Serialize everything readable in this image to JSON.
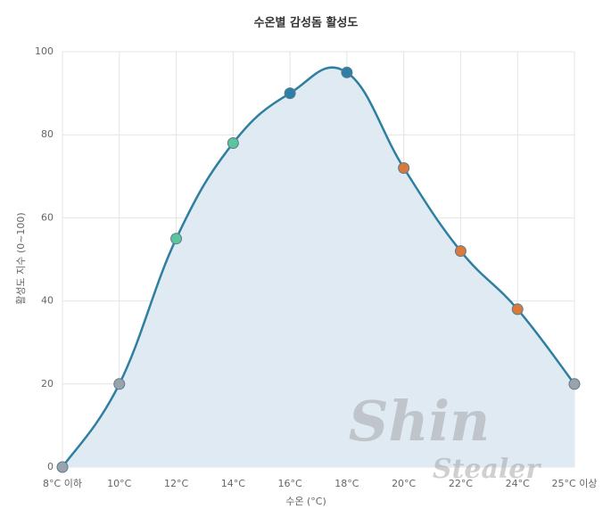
{
  "chart_data": {
    "type": "line",
    "title": "수온별 감성돔 활성도",
    "x_label": "수온 (°C)",
    "y_label": "활성도 지수 (0~100)",
    "categories": [
      "8°C 이하",
      "10°C",
      "12°C",
      "14°C",
      "16°C",
      "18°C",
      "20°C",
      "22°C",
      "24°C",
      "25°C 이상"
    ],
    "series": [
      {
        "color": "#2e7fa0",
        "fill": "#dfeaf3",
        "point_colors": [
          "#9aa3ab",
          "#9aa3ab",
          "#5cc59e",
          "#5cc59e",
          "#2e7fa8",
          "#2e7fa8",
          "#d97a3c",
          "#d97a3c",
          "#d97a3c",
          "#9aa3ab"
        ],
        "values": [
          0,
          20,
          55,
          78,
          90,
          95,
          72,
          52,
          38,
          20
        ]
      }
    ],
    "ylim": [
      0,
      100
    ],
    "yticks": [
      0,
      20,
      40,
      60,
      80,
      100
    ],
    "grid": true
  },
  "watermark": [
    "Shin",
    "Stealer"
  ]
}
